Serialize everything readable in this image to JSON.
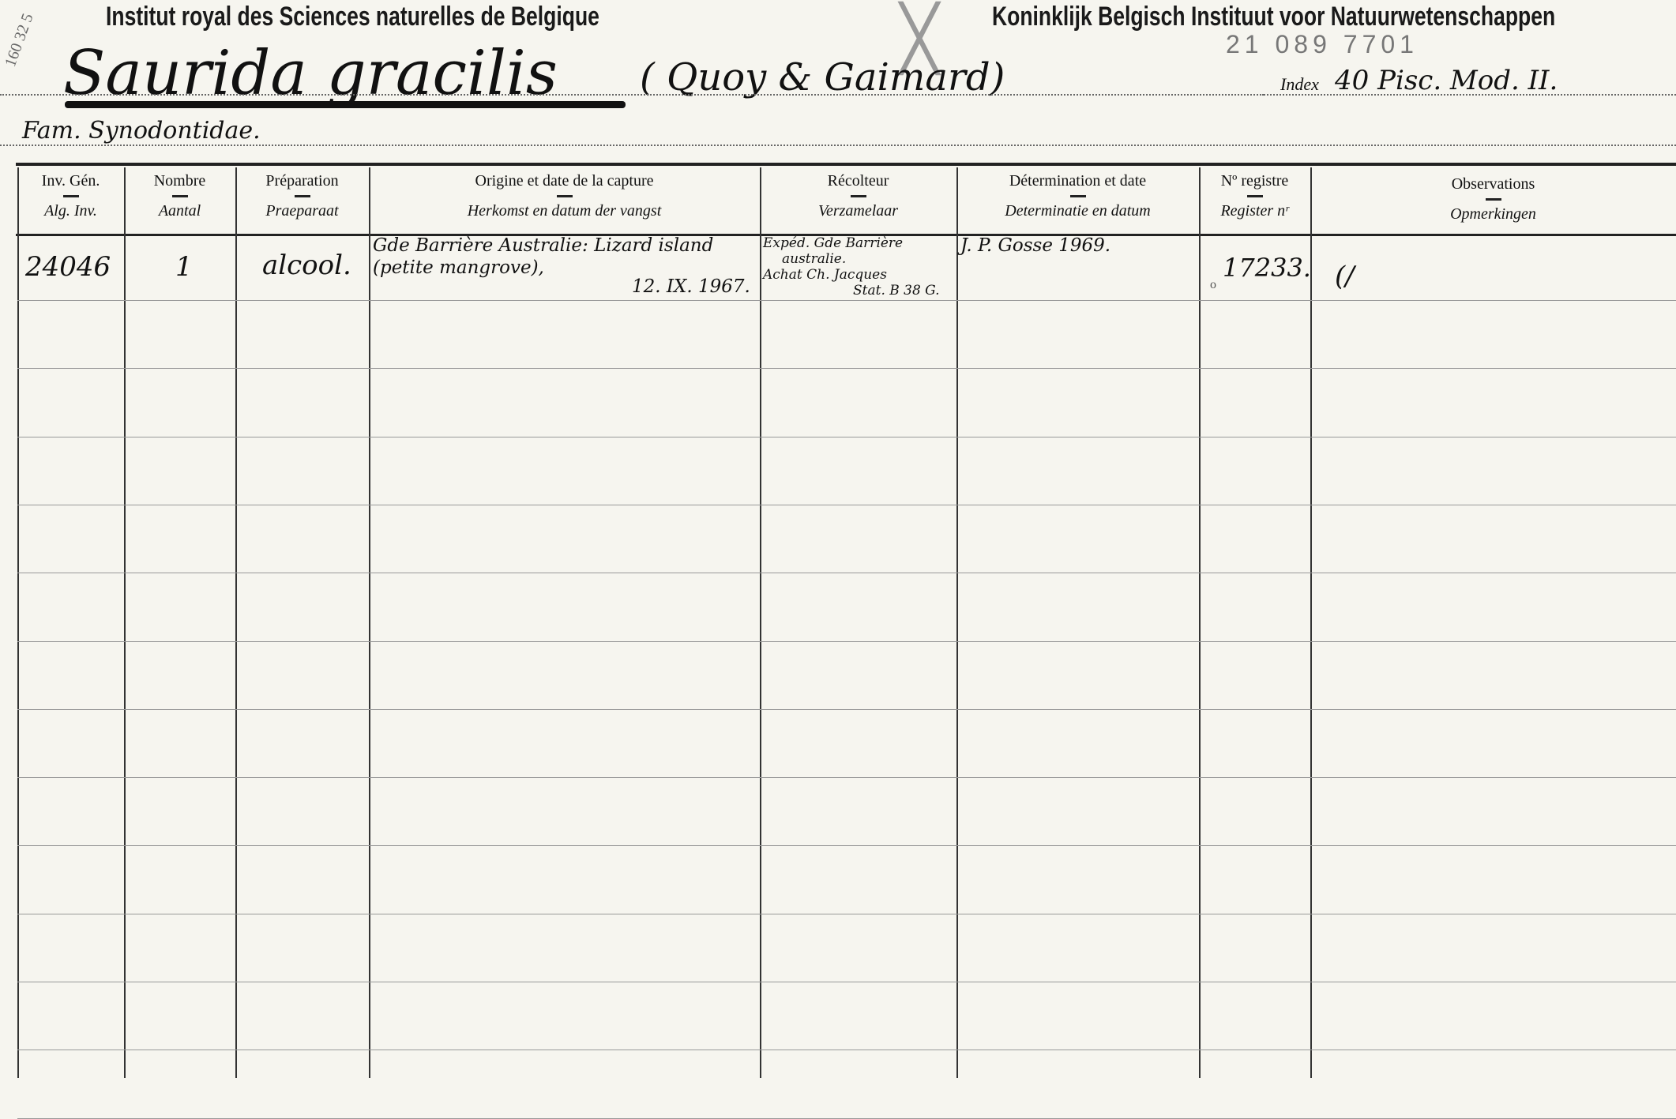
{
  "header": {
    "institute_fr": "Institut royal des Sciences naturelles de Belgique",
    "institute_nl": "Koninklijk Belgisch Instituut voor Natuurwetenschappen",
    "margin_note": "160 32 5",
    "pencil_number": "21 089 7701",
    "species": "Saurida gracilis",
    "author": "( Quoy & Gaimard)",
    "family": "Fam. Synodontidae.",
    "index_label": "Index",
    "index_value": "40 Pisc. Mod. II."
  },
  "columns": [
    {
      "fr": "Inv. Gén.",
      "nl": "Alg. Inv."
    },
    {
      "fr": "Nombre",
      "nl": "Aantal"
    },
    {
      "fr": "Préparation",
      "nl": "Praeparaat"
    },
    {
      "fr": "Origine et date de la capture",
      "nl": "Herkomst en datum der vangst"
    },
    {
      "fr": "Récolteur",
      "nl": "Verzamelaar"
    },
    {
      "fr": "Détermination et date",
      "nl": "Determinatie en datum"
    },
    {
      "fr": "Nº registre",
      "nl": "Register nʳ"
    },
    {
      "fr": "Observations",
      "nl": "Opmerkingen"
    }
  ],
  "entry": {
    "inv": "24046",
    "count": "1",
    "preparation": "alcool.",
    "origin_line1": "Gde Barrière Australie: Lizard island",
    "origin_line2": "(petite mangrove),",
    "origin_date": "12. IX. 1967.",
    "collector_line1": "Expéd. Gde Barrière",
    "collector_line2": "australie.",
    "collector_line3": "Achat Ch. Jacques",
    "collector_line4": "Stat. B 38 G.",
    "determination": "J. P. Gosse 1969.",
    "register": "17233.",
    "register_mark": "o",
    "observations": "(/"
  }
}
